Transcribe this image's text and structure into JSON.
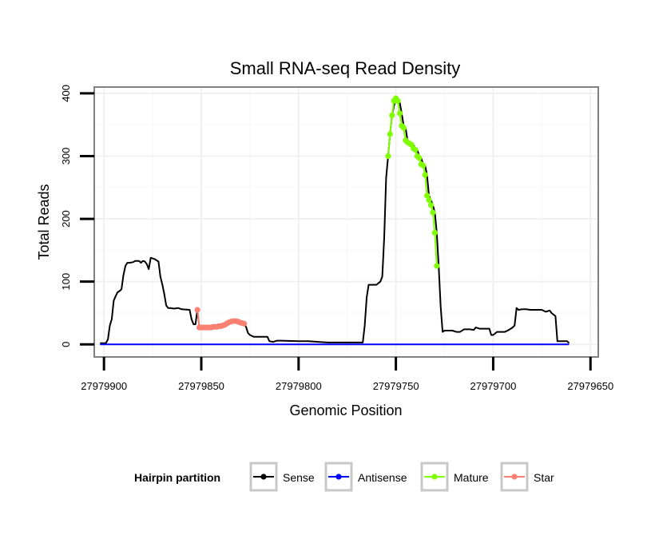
{
  "chart_data": {
    "type": "line",
    "title": "Small RNA-seq Read Density",
    "xlabel": "Genomic Position",
    "ylabel": "Total Reads",
    "x_reversed": true,
    "xlim": [
      27979905,
      27979646
    ],
    "ylim": [
      -20,
      410
    ],
    "x_ticks": [
      27979900,
      27979850,
      27979800,
      27979750,
      27979700,
      27979650
    ],
    "x_tick_labels": [
      "27979900",
      "27979850",
      "27979800",
      "27979750",
      "27979700",
      "27979650"
    ],
    "y_ticks": [
      0,
      100,
      200,
      300,
      400
    ],
    "y_tick_labels": [
      "0",
      "100",
      "200",
      "300",
      "400"
    ],
    "grid": true,
    "legend": {
      "title": "Hairpin partition",
      "placement": "bottom",
      "entries": [
        {
          "label": "Sense",
          "color": "#000000"
        },
        {
          "label": "Antisense",
          "color": "#0000ff"
        },
        {
          "label": "Mature",
          "color": "#7fff00"
        },
        {
          "label": "Star",
          "color": "#fa8072"
        }
      ]
    },
    "series": [
      {
        "name": "Sense",
        "color": "#000000",
        "markers": false,
        "points": [
          [
            27979902,
            2
          ],
          [
            27979899,
            2
          ],
          [
            27979898,
            8
          ],
          [
            27979897,
            30
          ],
          [
            27979896,
            40
          ],
          [
            27979895,
            70
          ],
          [
            27979894,
            77
          ],
          [
            27979893,
            83
          ],
          [
            27979892,
            85
          ],
          [
            27979891,
            88
          ],
          [
            27979890,
            110
          ],
          [
            27979889,
            125
          ],
          [
            27979888,
            130
          ],
          [
            27979887,
            130
          ],
          [
            27979885,
            131
          ],
          [
            27979884,
            133
          ],
          [
            27979882,
            133
          ],
          [
            27979881,
            130
          ],
          [
            27979880,
            133
          ],
          [
            27979879,
            132
          ],
          [
            27979878,
            128
          ],
          [
            27979877,
            120
          ],
          [
            27979876,
            138
          ],
          [
            27979874,
            136
          ],
          [
            27979872,
            132
          ],
          [
            27979871,
            108
          ],
          [
            27979870,
            95
          ],
          [
            27979869,
            80
          ],
          [
            27979868,
            62
          ],
          [
            27979867,
            58
          ],
          [
            27979866,
            58
          ],
          [
            27979864,
            57
          ],
          [
            27979862,
            58
          ],
          [
            27979860,
            56
          ],
          [
            27979856,
            55
          ],
          [
            27979855,
            40
          ],
          [
            27979854,
            32
          ],
          [
            27979853,
            32
          ],
          [
            27979852,
            55
          ],
          [
            27979851,
            27
          ],
          [
            27979849,
            27
          ],
          [
            27979847,
            27
          ],
          [
            27979845,
            27
          ],
          [
            27979843,
            27
          ],
          [
            27979841,
            28
          ],
          [
            27979840,
            28
          ],
          [
            27979838,
            29
          ],
          [
            27979837,
            30
          ],
          [
            27979835,
            33
          ],
          [
            27979834,
            36
          ],
          [
            27979832,
            37
          ],
          [
            27979830,
            37
          ],
          [
            27979828,
            34
          ],
          [
            27979827,
            28
          ],
          [
            27979826,
            18
          ],
          [
            27979825,
            15
          ],
          [
            27979823,
            12
          ],
          [
            27979820,
            12
          ],
          [
            27979816,
            12
          ],
          [
            27979815,
            5
          ],
          [
            27979813,
            4
          ],
          [
            27979811,
            6
          ],
          [
            27979809,
            6
          ],
          [
            27979800,
            5
          ],
          [
            27979795,
            5
          ],
          [
            27979790,
            4
          ],
          [
            27979785,
            3
          ],
          [
            27979780,
            3
          ],
          [
            27979775,
            3
          ],
          [
            27979770,
            3
          ],
          [
            27979768,
            3
          ],
          [
            27979767,
            3
          ],
          [
            27979766,
            30
          ],
          [
            27979765,
            75
          ],
          [
            27979764,
            95
          ],
          [
            27979763,
            95
          ],
          [
            27979760,
            95
          ],
          [
            27979758,
            100
          ],
          [
            27979757,
            108
          ],
          [
            27979756,
            170
          ],
          [
            27979755,
            265
          ],
          [
            27979754,
            300
          ],
          [
            27979753,
            335
          ],
          [
            27979752,
            365
          ],
          [
            27979751,
            380
          ],
          [
            27979750,
            390
          ],
          [
            27979749,
            392
          ],
          [
            27979748,
            385
          ],
          [
            27979747,
            368
          ],
          [
            27979746,
            348
          ],
          [
            27979745,
            345
          ],
          [
            27979744,
            325
          ],
          [
            27979743,
            322
          ],
          [
            27979742,
            320
          ],
          [
            27979741,
            318
          ],
          [
            27979740,
            312
          ],
          [
            27979739,
            310
          ],
          [
            27979738,
            300
          ],
          [
            27979737,
            297
          ],
          [
            27979736,
            287
          ],
          [
            27979735,
            285
          ],
          [
            27979734,
            270
          ],
          [
            27979733,
            237
          ],
          [
            27979732,
            230
          ],
          [
            27979731,
            222
          ],
          [
            27979730,
            210
          ],
          [
            27979729,
            178
          ],
          [
            27979728,
            125
          ],
          [
            27979727,
            60
          ],
          [
            27979726,
            20
          ],
          [
            27979725,
            22
          ],
          [
            27979723,
            22
          ],
          [
            27979721,
            22
          ],
          [
            27979719,
            20
          ],
          [
            27979717,
            20
          ],
          [
            27979715,
            24
          ],
          [
            27979712,
            24
          ],
          [
            27979710,
            23
          ],
          [
            27979709,
            27
          ],
          [
            27979707,
            25
          ],
          [
            27979705,
            25
          ],
          [
            27979702,
            25
          ],
          [
            27979701,
            15
          ],
          [
            27979700,
            15
          ],
          [
            27979698,
            20
          ],
          [
            27979696,
            20
          ],
          [
            27979694,
            20
          ],
          [
            27979692,
            23
          ],
          [
            27979690,
            27
          ],
          [
            27979689,
            30
          ],
          [
            27979688,
            58
          ],
          [
            27979687,
            55
          ],
          [
            27979685,
            56
          ],
          [
            27979683,
            56
          ],
          [
            27979681,
            55
          ],
          [
            27979678,
            55
          ],
          [
            27979675,
            55
          ],
          [
            27979673,
            52
          ],
          [
            27979671,
            54
          ],
          [
            27979670,
            50
          ],
          [
            27979668,
            45
          ],
          [
            27979667,
            5
          ],
          [
            27979663,
            5
          ],
          [
            27979662,
            5
          ],
          [
            27979661,
            2
          ]
        ]
      },
      {
        "name": "Antisense",
        "color": "#0000ff",
        "markers": false,
        "points": [
          [
            27979902,
            0
          ],
          [
            27979661,
            0
          ]
        ]
      },
      {
        "name": "Mature",
        "color": "#7fff00",
        "markers": true,
        "points": [
          [
            27979754,
            300
          ],
          [
            27979753,
            335
          ],
          [
            27979752,
            365
          ],
          [
            27979751,
            388
          ],
          [
            27979750,
            392
          ],
          [
            27979749,
            388
          ],
          [
            27979748,
            368
          ],
          [
            27979747,
            348
          ],
          [
            27979746,
            345
          ],
          [
            27979745,
            325
          ],
          [
            27979744,
            322
          ],
          [
            27979743,
            320
          ],
          [
            27979742,
            318
          ],
          [
            27979741,
            312
          ],
          [
            27979740,
            310
          ],
          [
            27979739,
            300
          ],
          [
            27979738,
            297
          ],
          [
            27979737,
            287
          ],
          [
            27979736,
            285
          ],
          [
            27979735,
            270
          ],
          [
            27979734,
            237
          ],
          [
            27979733,
            230
          ],
          [
            27979732,
            222
          ],
          [
            27979731,
            210
          ],
          [
            27979730,
            178
          ],
          [
            27979729,
            125
          ]
        ]
      },
      {
        "name": "Star",
        "color": "#fa8072",
        "markers": true,
        "points": [
          [
            27979852,
            55
          ],
          [
            27979851,
            27
          ],
          [
            27979850,
            27
          ],
          [
            27979849,
            27
          ],
          [
            27979848,
            27
          ],
          [
            27979847,
            27
          ],
          [
            27979846,
            27
          ],
          [
            27979845,
            27
          ],
          [
            27979844,
            28
          ],
          [
            27979843,
            28
          ],
          [
            27979842,
            28
          ],
          [
            27979841,
            29
          ],
          [
            27979840,
            29
          ],
          [
            27979839,
            30
          ],
          [
            27979838,
            31
          ],
          [
            27979837,
            33
          ],
          [
            27979836,
            35
          ],
          [
            27979835,
            36
          ],
          [
            27979834,
            37
          ],
          [
            27979833,
            37
          ],
          [
            27979832,
            37
          ],
          [
            27979831,
            36
          ],
          [
            27979830,
            35
          ],
          [
            27979829,
            34
          ],
          [
            27979828,
            33
          ]
        ]
      }
    ]
  }
}
